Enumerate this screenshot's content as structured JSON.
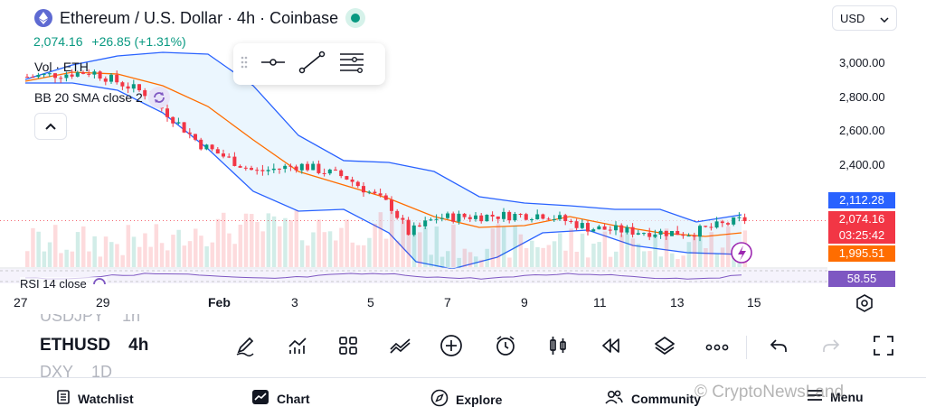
{
  "header": {
    "title": "Ethereum / U.S. Dollar · 4h · Coinbase",
    "price": "2,074.16",
    "change": "+26.85 (+1.31%)",
    "currency": "USD"
  },
  "legends": {
    "volume": "Vol · ETH",
    "bollinger": "BB 20 SMA close 2",
    "rsi": "RSI 14 close"
  },
  "price_axis": {
    "ticks": [
      "3,000.00",
      "2,800.00",
      "2,600.00",
      "2,400.00"
    ],
    "badges": {
      "upper_band": "2,112.28",
      "last_price": "2,074.16",
      "countdown": "03:25:42",
      "lower_band": "1,995.51",
      "rsi_value": "58.55"
    }
  },
  "time_axis": {
    "ticks": [
      "27",
      "29",
      "Feb",
      "3",
      "5",
      "7",
      "9",
      "11",
      "13",
      "15"
    ]
  },
  "symbols": {
    "prev": "USDJPY",
    "prev_tf": "1h",
    "current": "ETHUSD",
    "current_tf": "4h",
    "next": "DXY",
    "next_tf": "1D"
  },
  "bottom_nav": {
    "watchlist": "Watchlist",
    "chart": "Chart",
    "explore": "Explore",
    "community": "Community",
    "menu": "Menu"
  },
  "watermark": "© CryptoNewsLand",
  "colors": {
    "up": "#089981",
    "down": "#f23645",
    "bb_band": "#2962ff",
    "bb_basis": "#ff6d00",
    "rsi": "#7e57c2",
    "band_fill": "#e3f2fd"
  },
  "icons": {
    "toolbar": [
      "draw-pencil-icon",
      "indicators-icon",
      "layouts-icon",
      "chart-type-icon",
      "add-icon",
      "alert-icon",
      "candles-icon",
      "replay-icon",
      "layers-icon",
      "more-icon",
      "undo-icon",
      "redo-icon",
      "fullscreen-icon"
    ]
  }
}
